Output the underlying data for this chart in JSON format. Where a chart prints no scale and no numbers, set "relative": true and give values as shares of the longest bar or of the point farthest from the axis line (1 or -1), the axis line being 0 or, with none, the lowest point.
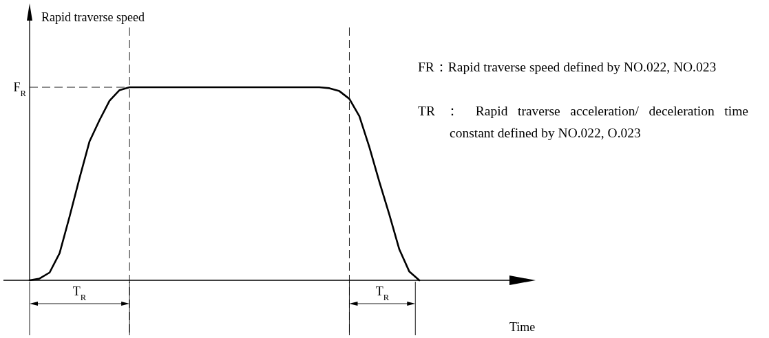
{
  "chart_data": {
    "type": "line",
    "relative": true,
    "categories": [
      null,
      null,
      null,
      null,
      null,
      null,
      null,
      null,
      null,
      null,
      null,
      null,
      null,
      null,
      null,
      null,
      null,
      null,
      null,
      null,
      null,
      null,
      null,
      null,
      null,
      null,
      null,
      null,
      null,
      null,
      null,
      null,
      null,
      null,
      null,
      null,
      null,
      null,
      null,
      null
    ],
    "series": [
      {
        "color": "#000000",
        "values": [
          0,
          0.009,
          0.04,
          0.14,
          0.33,
          0.53,
          0.72,
          0.83,
          0.93,
          0.985,
          1,
          1,
          1,
          1,
          1,
          1,
          1,
          1,
          1,
          1,
          1,
          1,
          1,
          1,
          1,
          1,
          1,
          1,
          1,
          1,
          0.995,
          0.98,
          0.94,
          0.85,
          0.69,
          0.51,
          0.34,
          0.16,
          0.045,
          0
        ]
      }
    ],
    "ref_lines": [
      {
        "axis": "y",
        "value": 1,
        "label": "F$_{R}$",
        "line_style": "dashed"
      }
    ],
    "annotations": [
      "Rapid traverse speed",
      "FR：Rapid traverse speed defined by NO.022, NO.023",
      "TR ： Rapid traverse acceleration/ deceleration time constant defined by NO.022, O.023",
      "T$_{R}$",
      "T$_{R}$",
      "Time"
    ],
    "marker": "none",
    "line_style": "solid"
  }
}
